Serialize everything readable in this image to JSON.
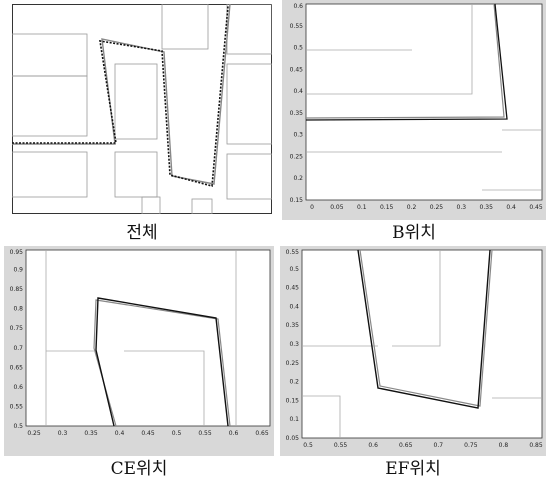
{
  "panels": [
    {
      "caption": "전체",
      "x_ticks": [],
      "y_ticks": [],
      "xlim": [
        0,
        1
      ],
      "ylim": [
        0,
        1
      ]
    },
    {
      "caption": "B위치",
      "x_ticks": [
        "0",
        "0.05",
        "0.1",
        "0.15",
        "0.2",
        "0.25",
        "0.3",
        "0.35",
        "0.4",
        "0.45"
      ],
      "y_ticks": [
        "0.6",
        "0.55",
        "0.5",
        "0.45",
        "0.4",
        "0.35",
        "0.3",
        "0.25",
        "0.2",
        "0.15"
      ],
      "xlim": [
        -0.02,
        0.47
      ],
      "ylim": [
        0.14,
        0.6
      ]
    },
    {
      "caption": "CE위치",
      "x_ticks": [
        "0.25",
        "0.3",
        "0.35",
        "0.4",
        "0.45",
        "0.5",
        "0.55",
        "0.6",
        "0.65"
      ],
      "y_ticks": [
        "0.95",
        "0.9",
        "0.85",
        "0.8",
        "0.75",
        "0.7",
        "0.65",
        "0.6",
        "0.55",
        "0.5"
      ],
      "xlim": [
        0.22,
        0.67
      ],
      "ylim": [
        0.47,
        0.96
      ]
    },
    {
      "caption": "EF위치",
      "x_ticks": [
        "0.5",
        "0.55",
        "0.6",
        "0.65",
        "0.7",
        "0.75",
        "0.8",
        "0.85"
      ],
      "y_ticks": [
        "0.55",
        "0.5",
        "0.45",
        "0.4",
        "0.35",
        "0.3",
        "0.25",
        "0.2",
        "0.15",
        "0.1",
        "0.05"
      ],
      "xlim": [
        0.49,
        0.88
      ],
      "ylim": [
        0.05,
        0.56
      ]
    }
  ]
}
